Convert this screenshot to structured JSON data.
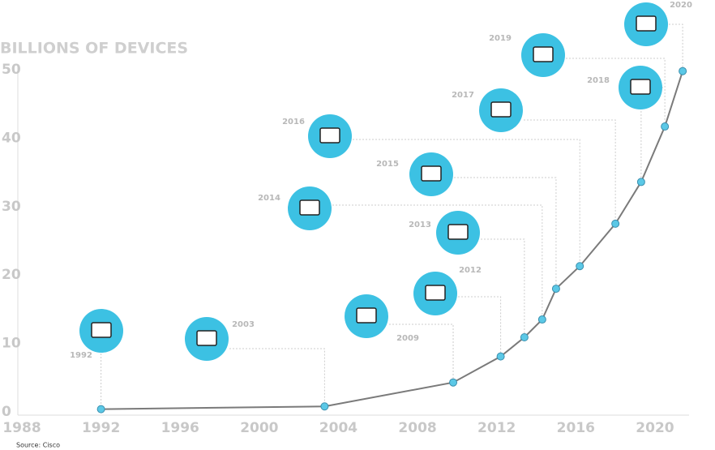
{
  "chart_data": {
    "type": "line",
    "title": "BILLIONS OF DEVICES",
    "source": "Source: Cisco",
    "x": [
      1992.0,
      2003.3,
      2009.8,
      2012.2,
      2013.4,
      2014.3,
      2015.0,
      2016.2,
      2018.0,
      2019.3,
      2020.5,
      2021.4
    ],
    "values": [
      0.4,
      0.8,
      4.3,
      8.1,
      10.9,
      13.5,
      18.0,
      21.3,
      27.5,
      33.6,
      41.7,
      49.8
    ],
    "annotations": [
      "1992",
      "2003",
      "2009",
      "2012",
      "2013",
      "2014",
      "2015",
      "2016",
      "2017",
      "2018",
      "2019",
      "2020"
    ],
    "xlim": [
      1988,
      2021.6
    ],
    "xticks": [
      1988,
      1992,
      1996,
      2000,
      2004,
      2008,
      2012,
      2016,
      2020
    ],
    "ylim": [
      0,
      50
    ],
    "yticks": [
      0,
      10,
      20,
      30,
      40,
      50
    ],
    "line_color": "#7a7a7a",
    "marker_color": "#5bc8e6",
    "icon_color": "#3cc1e3"
  }
}
